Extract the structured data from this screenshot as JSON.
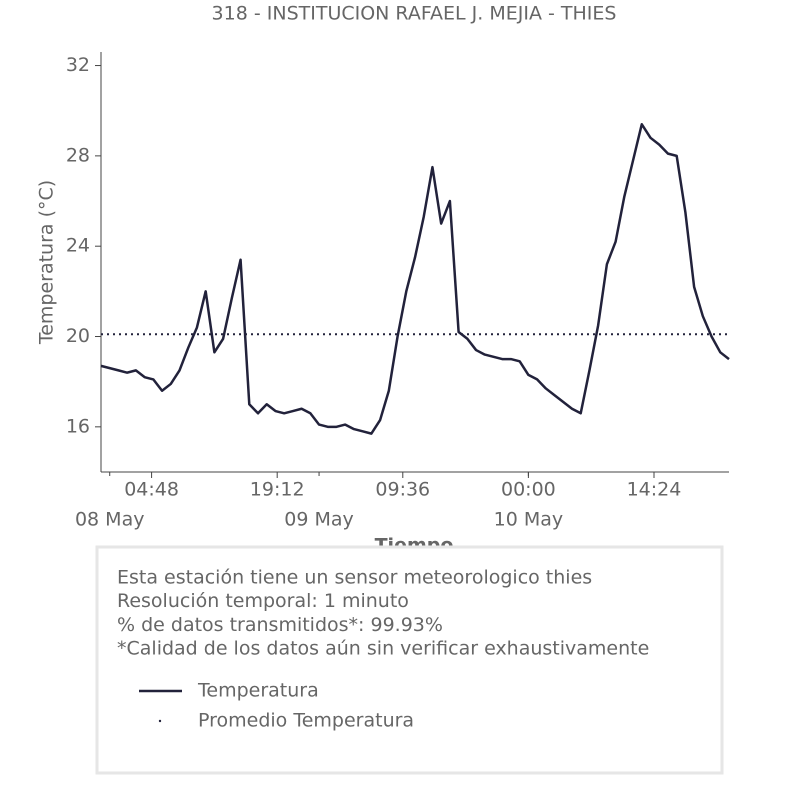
{
  "chart_data": {
    "type": "line",
    "title": "318 - INSTITUCION RAFAEL J. MEJIA - THIES",
    "xlabel": "Tiempo",
    "ylabel": "Temperatura (°C)",
    "x": [
      "07 May 23:00",
      "08 May 00:00",
      "08 May 01:00",
      "08 May 02:00",
      "08 May 03:00",
      "08 May 04:00",
      "08 May 05:00",
      "08 May 06:00",
      "08 May 07:00",
      "08 May 08:00",
      "08 May 09:00",
      "08 May 10:00",
      "08 May 11:00",
      "08 May 12:00",
      "08 May 13:00",
      "08 May 14:00",
      "08 May 15:00",
      "08 May 16:00",
      "08 May 17:00",
      "08 May 18:00",
      "08 May 19:00",
      "08 May 20:00",
      "08 May 21:00",
      "08 May 22:00",
      "08 May 23:00",
      "09 May 00:00",
      "09 May 01:00",
      "09 May 02:00",
      "09 May 03:00",
      "09 May 04:00",
      "09 May 05:00",
      "09 May 06:00",
      "09 May 07:00",
      "09 May 08:00",
      "09 May 09:00",
      "09 May 10:00",
      "09 May 11:00",
      "09 May 12:00",
      "09 May 13:00",
      "09 May 14:00",
      "09 May 15:00",
      "09 May 16:00",
      "09 May 17:00",
      "09 May 18:00",
      "09 May 19:00",
      "09 May 20:00",
      "09 May 21:00",
      "09 May 22:00",
      "09 May 23:00",
      "10 May 00:00",
      "10 May 01:00",
      "10 May 02:00",
      "10 May 03:00",
      "10 May 04:00",
      "10 May 05:00",
      "10 May 06:00",
      "10 May 07:00",
      "10 May 08:00",
      "10 May 09:00",
      "10 May 10:00",
      "10 May 11:00",
      "10 May 12:00",
      "10 May 13:00",
      "10 May 14:00",
      "10 May 15:00",
      "10 May 16:00",
      "10 May 17:00",
      "10 May 18:00",
      "10 May 19:00",
      "10 May 20:00",
      "10 May 21:00",
      "10 May 22:00",
      "10 May 23:00"
    ],
    "series": [
      {
        "name": "Temperatura",
        "color": "#22223b",
        "values": [
          18.7,
          18.6,
          18.5,
          18.4,
          18.5,
          18.2,
          18.1,
          17.6,
          17.9,
          18.5,
          19.5,
          20.4,
          22.0,
          19.3,
          19.9,
          21.7,
          23.4,
          17.0,
          16.6,
          17.0,
          16.7,
          16.6,
          16.7,
          16.8,
          16.6,
          16.1,
          16.0,
          16.0,
          16.1,
          15.9,
          15.8,
          15.7,
          16.3,
          17.6,
          20.0,
          22.0,
          23.5,
          25.3,
          27.5,
          25.0,
          26.0,
          20.2,
          19.9,
          19.4,
          19.2,
          19.1,
          19.0,
          19.0,
          18.9,
          18.3,
          18.1,
          17.7,
          17.4,
          17.1,
          16.8,
          16.6,
          18.5,
          20.5,
          23.2,
          24.2,
          26.2,
          27.8,
          29.4,
          28.8,
          28.5,
          28.1,
          28.0,
          25.5,
          22.2,
          20.9,
          20.0,
          19.3,
          19.0
        ]
      }
    ],
    "mean": {
      "name": "Promedio Temperatura",
      "value": 20.1,
      "color": "#22223b"
    },
    "xlim": [
      "07 May 23:00",
      "10 May 23:00"
    ],
    "xticks": [
      {
        "value": "08 May 04:48",
        "label": "04:48"
      },
      {
        "value": "08 May 19:12",
        "label": "19:12"
      },
      {
        "value": "09 May 09:36",
        "label": "09:36"
      },
      {
        "value": "10 May 00:00",
        "label": "00:00"
      },
      {
        "value": "10 May 14:24",
        "label": "14:24"
      }
    ],
    "xticks_minor": [
      {
        "value": "08 May 00:00",
        "label": "08 May"
      },
      {
        "value": "09 May 00:00",
        "label": "09 May"
      },
      {
        "value": "10 May 00:00",
        "label": "10 May"
      }
    ],
    "ylim": [
      14,
      32.6
    ],
    "yticks": [
      16,
      20,
      24,
      28,
      32
    ],
    "grid": false,
    "notes": [
      "Esta estación tiene un sensor meteorologico thies",
      "Resolución temporal: 1 minuto",
      "% de datos transmitidos*: 99.93%",
      "*Calidad de los datos aún sin verificar exhaustivamente"
    ]
  }
}
